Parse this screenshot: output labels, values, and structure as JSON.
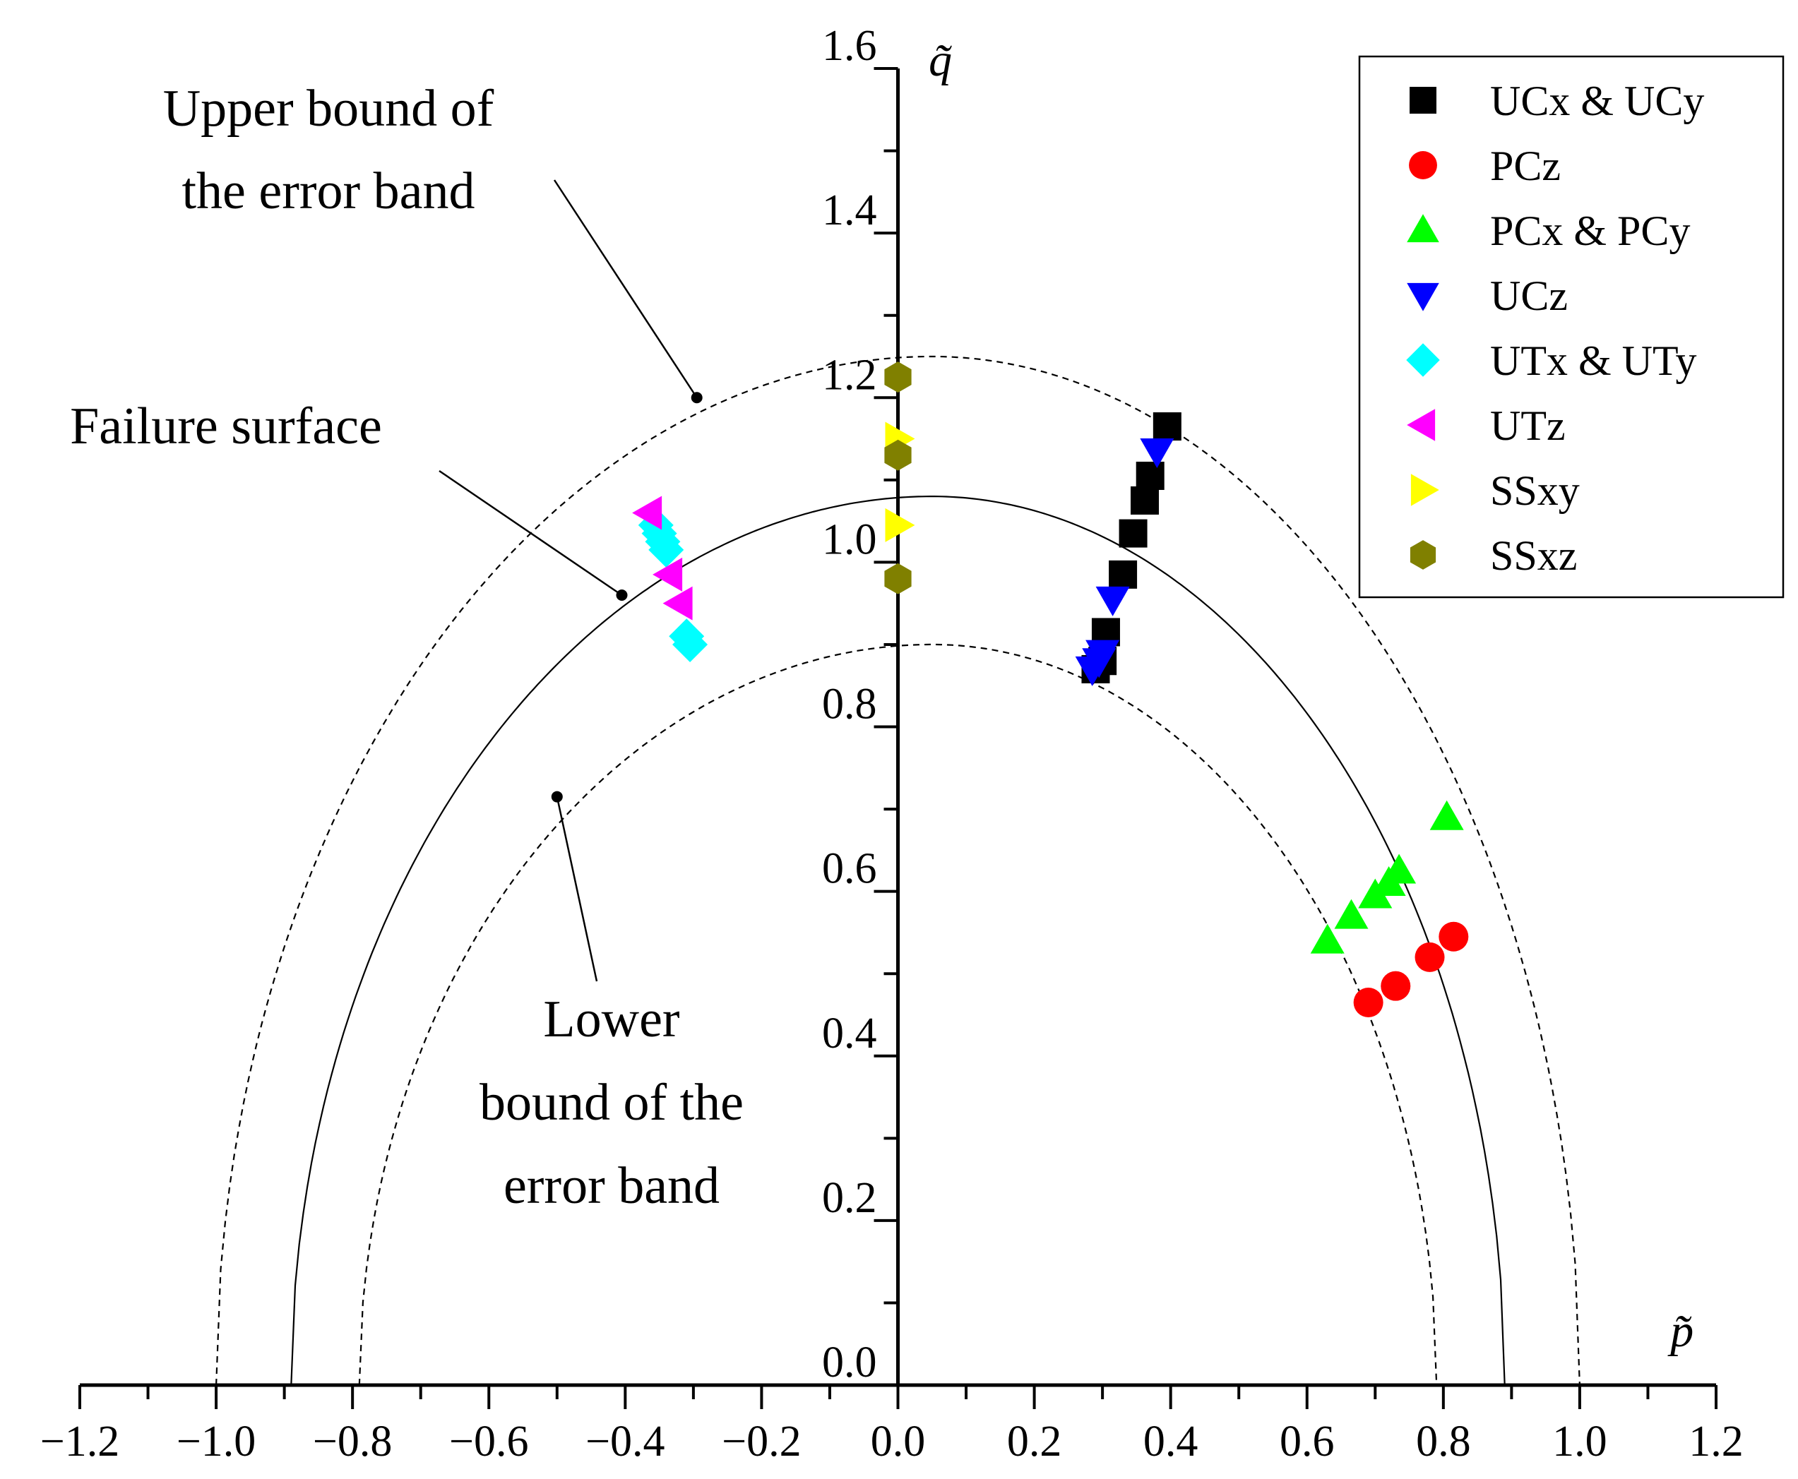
{
  "chart_data": {
    "type": "scatter",
    "xlabel": "p̃",
    "ylabel": "q̃",
    "xlim": [
      -1.2,
      1.2
    ],
    "ylim": [
      0.0,
      1.6
    ],
    "x_ticks": [
      "−1.2",
      "−1.0",
      "−0.8",
      "−0.6",
      "−0.4",
      "−0.2",
      "0.0",
      "0.2",
      "0.4",
      "0.6",
      "0.8",
      "1.0",
      "1.2"
    ],
    "y_ticks": [
      "0.0",
      "0.2",
      "0.4",
      "0.6",
      "0.8",
      "1.0",
      "1.2",
      "1.4",
      "1.6"
    ],
    "legend_position": "top-right",
    "series": [
      {
        "name": "UCx & UCy",
        "marker": "square",
        "color": "#000000",
        "points": [
          [
            0.29,
            0.87
          ],
          [
            0.3,
            0.88
          ],
          [
            0.305,
            0.915
          ],
          [
            0.33,
            0.985
          ],
          [
            0.345,
            1.035
          ],
          [
            0.362,
            1.075
          ],
          [
            0.37,
            1.105
          ],
          [
            0.395,
            1.165
          ]
        ]
      },
      {
        "name": "PCz",
        "marker": "circle",
        "color": "#ff0000",
        "points": [
          [
            0.69,
            0.465
          ],
          [
            0.73,
            0.485
          ],
          [
            0.78,
            0.52
          ],
          [
            0.815,
            0.545
          ]
        ]
      },
      {
        "name": "PCx & PCy",
        "marker": "triangle-up",
        "color": "#00ff00",
        "points": [
          [
            0.63,
            0.54
          ],
          [
            0.665,
            0.57
          ],
          [
            0.7,
            0.595
          ],
          [
            0.72,
            0.61
          ],
          [
            0.735,
            0.625
          ],
          [
            0.805,
            0.69
          ]
        ]
      },
      {
        "name": "UCz",
        "marker": "triangle-down",
        "color": "#0000ff",
        "points": [
          [
            0.285,
            0.87
          ],
          [
            0.295,
            0.88
          ],
          [
            0.3,
            0.89
          ],
          [
            0.315,
            0.955
          ],
          [
            0.38,
            1.135
          ]
        ]
      },
      {
        "name": "UTx & UTy",
        "marker": "diamond",
        "color": "#00ffff",
        "points": [
          [
            -0.355,
            1.045
          ],
          [
            -0.35,
            1.035
          ],
          [
            -0.345,
            1.025
          ],
          [
            -0.34,
            1.015
          ],
          [
            -0.31,
            0.91
          ],
          [
            -0.305,
            0.9
          ]
        ]
      },
      {
        "name": "UTz",
        "marker": "triangle-left",
        "color": "#ff00ff",
        "points": [
          [
            -0.365,
            1.06
          ],
          [
            -0.335,
            0.985
          ],
          [
            -0.32,
            0.95
          ]
        ]
      },
      {
        "name": "SSxy",
        "marker": "triangle-right",
        "color": "#ffff00",
        "points": [
          [
            0.0,
            1.045
          ],
          [
            0.0,
            1.15
          ]
        ]
      },
      {
        "name": "SSxz",
        "marker": "hexagon",
        "color": "#808000",
        "points": [
          [
            0.0,
            0.98
          ],
          [
            0.0,
            1.13
          ],
          [
            0.0,
            1.225
          ]
        ]
      }
    ],
    "curves": [
      {
        "id": "failure-surface",
        "style": "solid",
        "x_range": [
          -0.89,
          0.89
        ],
        "peak": [
          0.05,
          1.08
        ]
      },
      {
        "id": "upper-bound",
        "style": "dashed",
        "x_range": [
          -1.0,
          1.0
        ],
        "peak": [
          0.05,
          1.25
        ]
      },
      {
        "id": "lower-bound",
        "style": "dashed",
        "x_range": [
          -0.79,
          0.79
        ],
        "peak": [
          0.05,
          0.9
        ]
      }
    ],
    "annotations": [
      {
        "id": "upper",
        "lines": [
          "Upper bound of",
          "the error band"
        ],
        "target": [
          -0.295,
          1.2
        ]
      },
      {
        "id": "failure",
        "lines": [
          "Failure surface"
        ],
        "target": [
          -0.405,
          0.96
        ]
      },
      {
        "id": "lower",
        "lines": [
          "Lower",
          "bound of the",
          "error band"
        ],
        "target": [
          -0.5,
          0.715
        ]
      }
    ]
  }
}
